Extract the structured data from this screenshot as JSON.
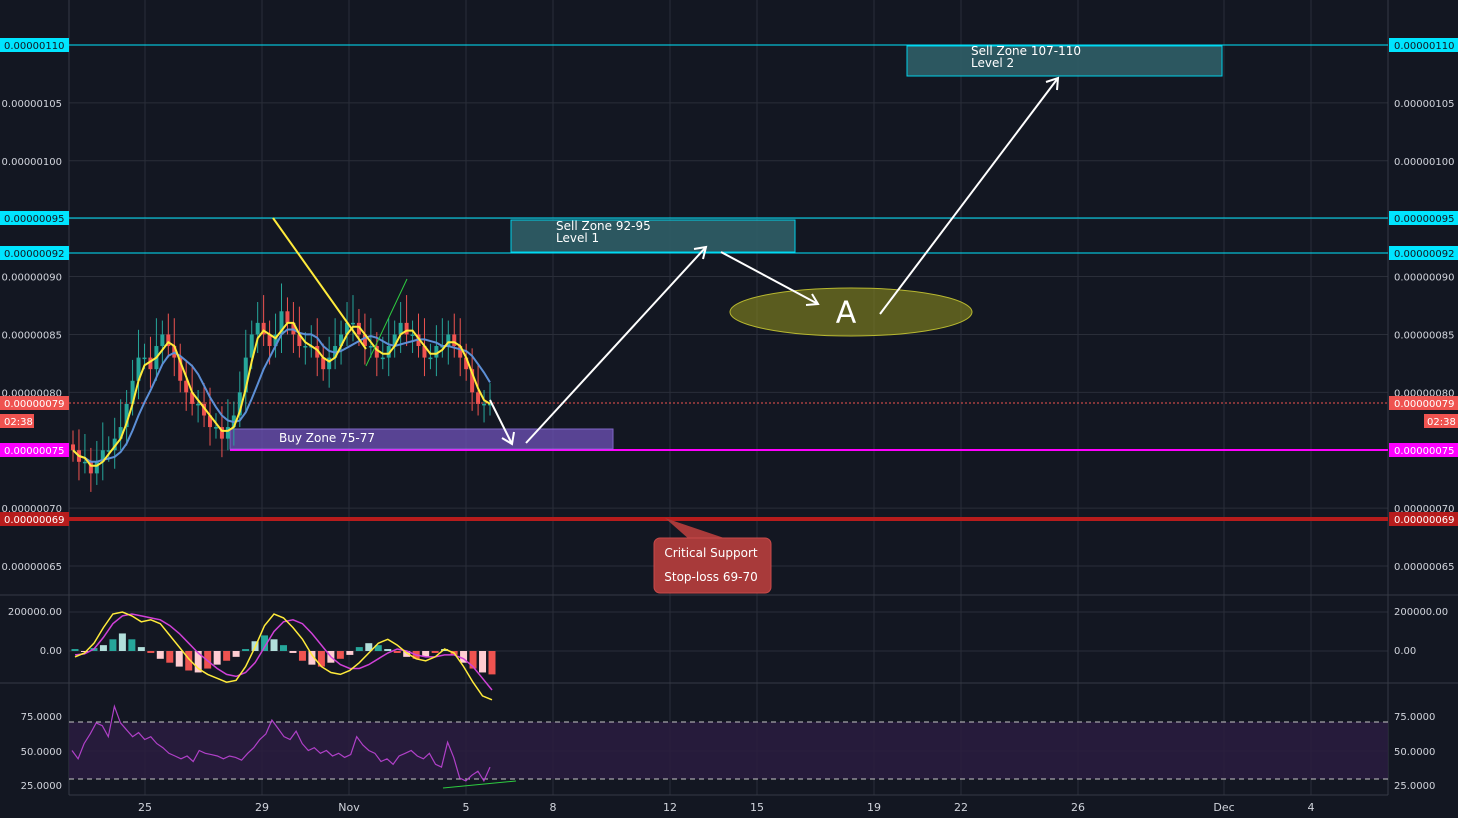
{
  "colors": {
    "background": "#131722",
    "grid": "#2a2e39",
    "axis_text": "#d1d4dc",
    "cyan_line": "#00e5ff",
    "magenta_line": "#ff00ff",
    "red_line": "#b71c1c",
    "current_price": "#ef5350",
    "candle_up": "#26a69a",
    "candle_down": "#ef5350",
    "ma_fast": "#ffeb3b",
    "ma_slow": "#5c8fd6",
    "zone_sell": "#2f5e67",
    "zone_buy": "#6a4fb0",
    "ellipse": "#8a8a1e",
    "callout": "#a83a3a",
    "macd_line": "#ffeb3b",
    "macd_signal": "#d041d8",
    "rsi_line": "#b040c8",
    "rsi_band": "#2a1c3f",
    "trend_up": "#2ecc40"
  },
  "price_axis": {
    "ticks": [
      "0.00000110",
      "0.00000105",
      "0.00000100",
      "0.00000095",
      "0.00000090",
      "0.00000085",
      "0.00000080",
      "0.00000075",
      "0.00000070",
      "0.00000065"
    ],
    "tick_values": [
      110,
      105,
      100,
      95,
      90,
      85,
      80,
      75,
      70,
      65
    ]
  },
  "level_tags": {
    "l110": "0.00000110",
    "l095": "0.00000095",
    "l092": "0.00000092",
    "l079": "0.00000079",
    "l075": "0.00000075",
    "l069": "0.00000069",
    "countdown": "02:38"
  },
  "zones": {
    "sell2_title": "Sell Zone 107-110",
    "sell2_sub": "Level 2",
    "sell1_title": "Sell Zone 92-95",
    "sell1_sub": "Level 1",
    "buy": "Buy Zone 75-77",
    "marker": "A"
  },
  "callout": {
    "line1": "Critical Support",
    "line2": "Stop-loss 69-70"
  },
  "x_axis": {
    "labels": [
      "25",
      "29",
      "Nov",
      "5",
      "8",
      "12",
      "15",
      "19",
      "22",
      "26",
      "Dec",
      "4"
    ]
  },
  "macd_axis": {
    "labels": [
      "200000.00",
      "0.00"
    ]
  },
  "rsi_axis": {
    "labels": [
      "75.0000",
      "50.0000",
      "25.0000"
    ]
  },
  "chart_data": {
    "type": "candlestick",
    "pair_price_unit": "1e-8",
    "x_categories": [
      "25",
      "29",
      "Nov",
      "5",
      "8",
      "12",
      "15",
      "19",
      "22",
      "26",
      "Dec",
      "4"
    ],
    "ylim": [
      62,
      113
    ],
    "closes": [
      75,
      74,
      74,
      73,
      74,
      75,
      75,
      76,
      77,
      79,
      81,
      83,
      83,
      82,
      84,
      85,
      84,
      83,
      81,
      80,
      79,
      79,
      78,
      77,
      77,
      76,
      77,
      78,
      80,
      83,
      85,
      86,
      85,
      84,
      85,
      87,
      86,
      85,
      84,
      84,
      84,
      83,
      82,
      83,
      84,
      85,
      86,
      86,
      85,
      84,
      84,
      83,
      83,
      84,
      85,
      86,
      85,
      85,
      84,
      83,
      83,
      84,
      84,
      85,
      84,
      83,
      82,
      80,
      79,
      79,
      79
    ],
    "horizontal_levels": [
      110,
      95,
      92,
      79,
      75,
      69
    ],
    "macd_ylim": [
      -300000,
      250000
    ],
    "macd_histogram": [
      10000,
      -5000,
      15000,
      30000,
      60000,
      90000,
      60000,
      20000,
      -10000,
      -40000,
      -60000,
      -80000,
      -100000,
      -110000,
      -90000,
      -70000,
      -50000,
      -30000,
      10000,
      50000,
      80000,
      60000,
      30000,
      -10000,
      -50000,
      -70000,
      -80000,
      -60000,
      -40000,
      -20000,
      20000,
      40000,
      30000,
      10000,
      -10000,
      -30000,
      -40000,
      -30000,
      -10000,
      10000,
      -20000,
      -60000,
      -90000,
      -110000,
      -120000
    ],
    "macd_line": [
      -30000,
      -10000,
      40000,
      120000,
      190000,
      200000,
      180000,
      150000,
      160000,
      140000,
      80000,
      20000,
      -40000,
      -90000,
      -120000,
      -140000,
      -160000,
      -150000,
      -80000,
      20000,
      130000,
      190000,
      170000,
      120000,
      60000,
      -20000,
      -80000,
      -110000,
      -120000,
      -100000,
      -60000,
      -10000,
      40000,
      60000,
      30000,
      -10000,
      -40000,
      -50000,
      -30000,
      10000,
      -10000,
      -80000,
      -160000,
      -230000,
      -250000
    ],
    "macd_signal": [
      -20000,
      -15000,
      10000,
      70000,
      140000,
      180000,
      190000,
      180000,
      170000,
      160000,
      130000,
      90000,
      40000,
      -10000,
      -50000,
      -90000,
      -120000,
      -130000,
      -110000,
      -60000,
      20000,
      100000,
      150000,
      160000,
      140000,
      90000,
      30000,
      -30000,
      -70000,
      -90000,
      -90000,
      -70000,
      -40000,
      -10000,
      10000,
      0,
      -20000,
      -30000,
      -30000,
      -20000,
      -20000,
      -40000,
      -80000,
      -140000,
      -200000
    ],
    "rsi_ylim": [
      20,
      90
    ],
    "rsi_bands": [
      70,
      30
    ],
    "rsi": [
      50,
      44,
      55,
      62,
      70,
      68,
      60,
      82,
      70,
      65,
      60,
      63,
      58,
      60,
      55,
      52,
      48,
      46,
      44,
      46,
      42,
      50,
      48,
      47,
      46,
      44,
      46,
      45,
      43,
      48,
      52,
      58,
      62,
      72,
      66,
      60,
      58,
      64,
      55,
      50,
      52,
      48,
      50,
      46,
      48,
      45,
      47,
      60,
      54,
      50,
      48,
      42,
      44,
      40,
      46,
      48,
      50,
      46,
      44,
      48,
      40,
      38,
      56,
      45,
      30,
      28,
      32,
      35,
      28,
      38
    ]
  }
}
